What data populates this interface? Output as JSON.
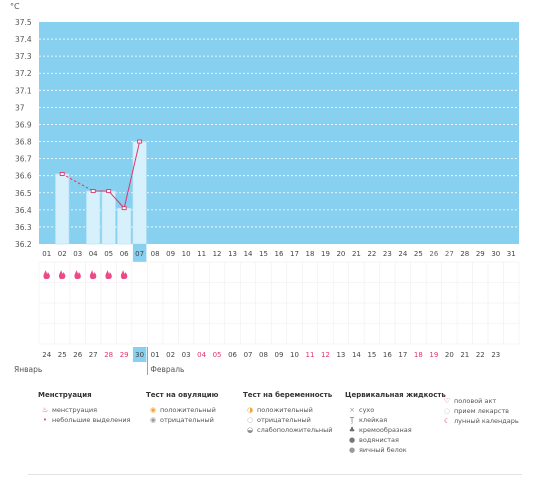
{
  "chart_data": {
    "type": "line",
    "unit_label": "°C",
    "y_ticks": [
      "37.5",
      "37.4",
      "37.3",
      "37.2",
      "37.1",
      "37",
      "36.9",
      "36.8",
      "36.7",
      "36.6",
      "36.5",
      "36.4",
      "36.3",
      "36.2"
    ],
    "ylim": [
      36.2,
      37.5
    ],
    "x_days": [
      "01",
      "02",
      "03",
      "04",
      "05",
      "06",
      "07",
      "08",
      "09",
      "10",
      "11",
      "12",
      "13",
      "14",
      "15",
      "16",
      "17",
      "18",
      "19",
      "20",
      "21",
      "22",
      "23",
      "24",
      "25",
      "26",
      "27",
      "28",
      "29",
      "30",
      "31"
    ],
    "highlight_day": "07",
    "x_weekend_days": [
      "26",
      "27"
    ],
    "temperatures": [
      {
        "day": "02",
        "value": 36.61
      },
      {
        "day": "04",
        "value": 36.51
      },
      {
        "day": "05",
        "value": 36.51
      },
      {
        "day": "06",
        "value": 36.41
      },
      {
        "day": "07",
        "value": 36.8
      }
    ],
    "dashed_segments": [
      [
        "02",
        "04"
      ]
    ],
    "bars": [
      "02",
      "04",
      "05",
      "06",
      "07"
    ],
    "menstruation_days": [
      "01",
      "02",
      "03",
      "04",
      "05",
      "06"
    ],
    "calendar_dates": [
      "24",
      "25",
      "26",
      "27",
      "28",
      "29",
      "30",
      "01",
      "02",
      "03",
      "04",
      "05",
      "06",
      "07",
      "08",
      "09",
      "10",
      "11",
      "12",
      "13",
      "14",
      "15",
      "16",
      "17",
      "18",
      "19",
      "20",
      "21",
      "22",
      "23"
    ],
    "calendar_red": [
      "28",
      "29",
      "04",
      "05",
      "11",
      "12",
      "18",
      "19"
    ],
    "calendar_highlight": "30",
    "month_left": "Январь",
    "month_right": "Февраль"
  },
  "legend": [
    {
      "title": "Менструация",
      "items": [
        {
          "icon": "menstruation-icon",
          "glyph": "♨",
          "color": "#e4407a",
          "label": "менструация"
        },
        {
          "icon": "spotting-icon",
          "glyph": "•",
          "color": "#e4407a",
          "label": "небольшие выделения"
        }
      ]
    },
    {
      "title": "Тест на овуляцию",
      "items": [
        {
          "icon": "ovulation-positive-icon",
          "glyph": "◉",
          "color": "#f3a33a",
          "label": "положительный"
        },
        {
          "icon": "ovulation-negative-icon",
          "glyph": "◉",
          "color": "#9a9a9a",
          "label": "отрицательный"
        }
      ]
    },
    {
      "title": "Тест на беременность",
      "items": [
        {
          "icon": "pregnancy-positive-icon",
          "glyph": "◑",
          "color": "#f3a33a",
          "label": "положительный"
        },
        {
          "icon": "pregnancy-negative-icon",
          "glyph": "○",
          "color": "#b5b5b5",
          "label": "отрицательный"
        },
        {
          "icon": "pregnancy-weak-icon",
          "glyph": "◒",
          "color": "#8a8a8a",
          "label": "слабоположительный"
        }
      ]
    },
    {
      "title": "Цервикальная жидкость",
      "items": [
        {
          "icon": "dry-icon",
          "glyph": "×",
          "color": "#9a9a9a",
          "label": "сухо"
        },
        {
          "icon": "sticky-icon",
          "glyph": "Ţ",
          "color": "#777",
          "label": "клейкая"
        },
        {
          "icon": "creamy-icon",
          "glyph": "♣",
          "color": "#666",
          "label": "кремообразная"
        },
        {
          "icon": "watery-icon",
          "glyph": "●",
          "color": "#777",
          "label": "водянистая"
        },
        {
          "icon": "egg-white-icon",
          "glyph": "●",
          "color": "#999",
          "label": "яичный белок"
        }
      ]
    },
    {
      "title": "",
      "items": [
        {
          "icon": "intercourse-icon",
          "glyph": "♡",
          "color": "#e4407a",
          "label": "половой акт"
        },
        {
          "icon": "medication-icon",
          "glyph": "◌",
          "color": "#aaa",
          "label": "прием лекарств"
        },
        {
          "icon": "lunar-calendar-icon",
          "glyph": "☾",
          "color": "#e4407a",
          "label": "лунный календарь"
        }
      ]
    }
  ]
}
